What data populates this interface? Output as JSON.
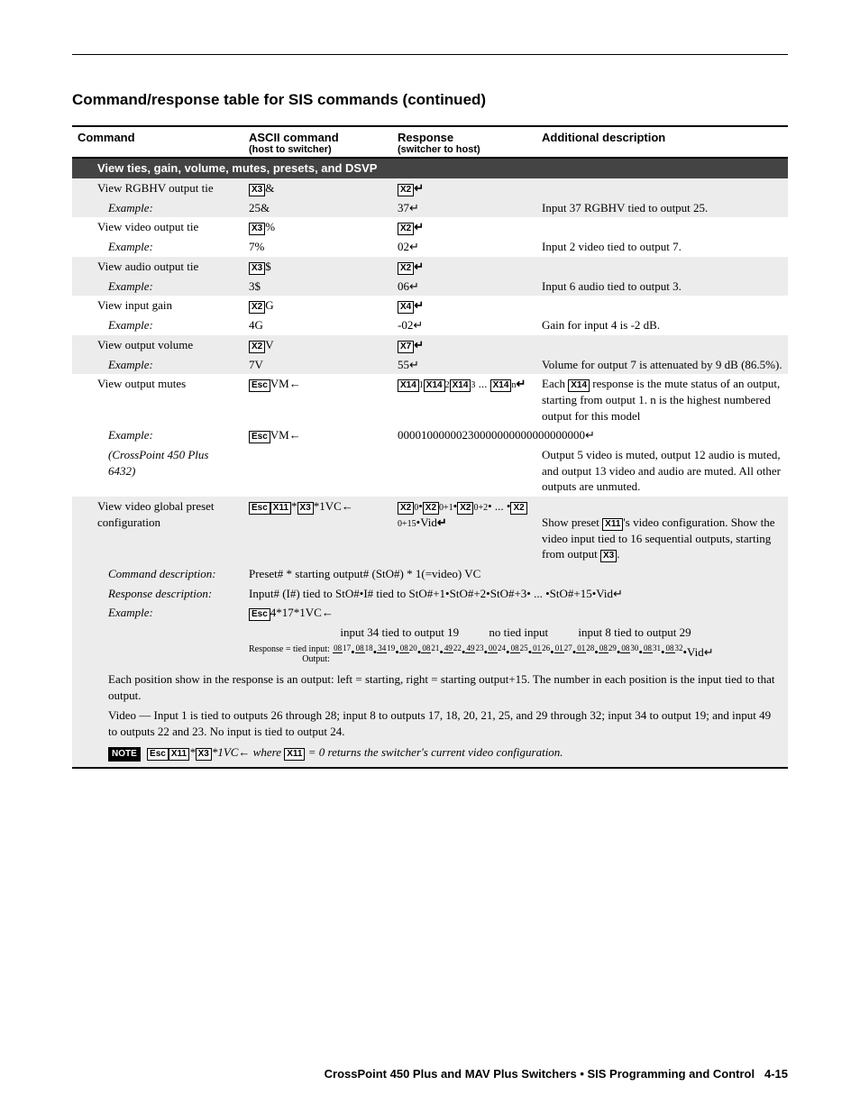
{
  "page": {
    "title": "Command/response table for SIS commands (continued)",
    "footer": "CrossPoint 450 Plus and MAV Plus Switchers • SIS Programming and Control",
    "page_num": "4-15"
  },
  "headers": {
    "cmd": "Command",
    "ascii": "ASCII command",
    "ascii_sub": "(host to switcher)",
    "resp": "Response",
    "resp_sub": "(switcher to host)",
    "desc": "Additional description"
  },
  "section": "View ties, gain, volume, mutes, presets, and DSVP",
  "rows": {
    "rgbhv": {
      "cmd": "View RGBHV output tie",
      "ascii_box": "X3",
      "ascii_suf": "&",
      "resp_box": "X2",
      "resp_suf": "↵",
      "desc": ""
    },
    "rgbhv_ex": {
      "cmd": "Example:",
      "ascii": "25&",
      "resp": "37↵",
      "desc": "Input 37 RGBHV tied to output 25."
    },
    "video": {
      "cmd": "View video output tie",
      "ascii_box": "X3",
      "ascii_suf": "%",
      "resp_box": "X2",
      "resp_suf": "↵",
      "desc": ""
    },
    "video_ex": {
      "cmd": "Example:",
      "ascii": "7%",
      "resp": "02↵",
      "desc": "Input 2 video tied to output 7."
    },
    "audio": {
      "cmd": "View audio output tie",
      "ascii_box": "X3",
      "ascii_suf": "$",
      "resp_box": "X2",
      "resp_suf": "↵",
      "desc": ""
    },
    "audio_ex": {
      "cmd": "Example:",
      "ascii": "3$",
      "resp": "06↵",
      "desc": "Input 6 audio tied to output 3."
    },
    "gain": {
      "cmd": "View input gain",
      "ascii_box": "X2",
      "ascii_suf": "G",
      "resp_box": "X4",
      "resp_suf": "↵",
      "desc": ""
    },
    "gain_ex": {
      "cmd": "Example:",
      "ascii": "4G",
      "resp": "-02↵",
      "desc": "Gain for input 4 is -2 dB."
    },
    "vol": {
      "cmd": "View output volume",
      "ascii_box": "X2",
      "ascii_suf": "V",
      "resp_box": "X7",
      "resp_suf": "↵",
      "desc": ""
    },
    "vol_ex": {
      "cmd": "Example:",
      "ascii": "7V",
      "resp": "55↵",
      "desc": "Volume for output 7 is attenuated by 9 dB (86.5%)."
    },
    "mutes": {
      "cmd": "View output mutes",
      "ascii_box": "Esc",
      "ascii_suf": "VM←",
      "resp_a": "X14",
      "resp_b": "X14",
      "resp_c": "X14",
      "resp_d": "X14",
      "desc_pre": "Each ",
      "desc_box": "X14",
      "desc_post": " response is the mute status of an output, starting from output 1.  n is the highest numbered output for this model"
    },
    "mutes_ex": {
      "cmd": "Example:",
      "ascii_box": "Esc",
      "ascii_suf": "VM←",
      "resp": "00001000000230000000000000000000↵",
      "desc": ""
    },
    "mutes_ex2": {
      "cmd": "(CrossPoint 450 Plus 6432)",
      "desc": "Output 5 video is muted, output 12 audio is muted, and output 13 video and audio are muted.  All other outputs are unmuted."
    },
    "preset": {
      "cmd": "View video global preset configuration",
      "ascii_b1": "Esc",
      "ascii_b2": "X11",
      "ascii_mid": "*",
      "ascii_b3": "X3",
      "ascii_suf": "*1VC←",
      "resp_b": "X2",
      "desc_pre": "Show preset ",
      "desc_box": "X11",
      "desc_mid": "'s video configuration.  Show the video input tied to 16 sequential outputs, starting from output ",
      "desc_box2": "X3",
      "desc_post": "."
    },
    "cmd_desc": {
      "label": "Command description:",
      "text": "Preset# * starting output# (StO#) * 1(=video) VC"
    },
    "resp_desc": {
      "label": "Response description:",
      "text": "Input# (I#) tied to StO#•I# tied to StO#+1•StO#+2•StO#+3• ... •StO#+15•Vid↵"
    },
    "preset_ex": {
      "label": "Example:",
      "ascii_box": "Esc",
      "ascii_suf": "4*17*1VC←"
    },
    "anno": {
      "a": "input 34 tied to output 19",
      "b": "no tied input",
      "c": "input 8 tied to output 29"
    },
    "response_line": {
      "prefix": "Response = tied input:",
      "output_label": "Output:",
      "pairs": [
        [
          "08",
          "17"
        ],
        [
          "08",
          "18"
        ],
        [
          "34",
          "19"
        ],
        [
          "08",
          "20"
        ],
        [
          "08",
          "21"
        ],
        [
          "49",
          "22"
        ],
        [
          "49",
          "23"
        ],
        [
          "00",
          "24"
        ],
        [
          "08",
          "25"
        ],
        [
          "01",
          "26"
        ],
        [
          "01",
          "27"
        ],
        [
          "01",
          "28"
        ],
        [
          "08",
          "29"
        ],
        [
          "08",
          "30"
        ],
        [
          "08",
          "31"
        ],
        [
          "08",
          "32"
        ]
      ],
      "suffix": "•Vid↵"
    }
  },
  "explain": {
    "p1": "Each position show in the response is an output: left = starting, right = starting output+15.  The number in each position is the input tied to that output.",
    "p2": "Video — Input 1 is tied to outputs 26 through 28; input 8 to outputs 17, 18, 20, 21, 25, and 29 through 32; input 34 to output 19; and input 49 to outputs 22 and 23.  No input is tied to output 24.",
    "note_b1": "Esc",
    "note_b2": "X11",
    "note_mid": "*",
    "note_b3": "X3",
    "note_suf": "*1VC← where ",
    "note_b4": "X11",
    "note_tail": " = 0 returns the switcher's current video configuration."
  }
}
